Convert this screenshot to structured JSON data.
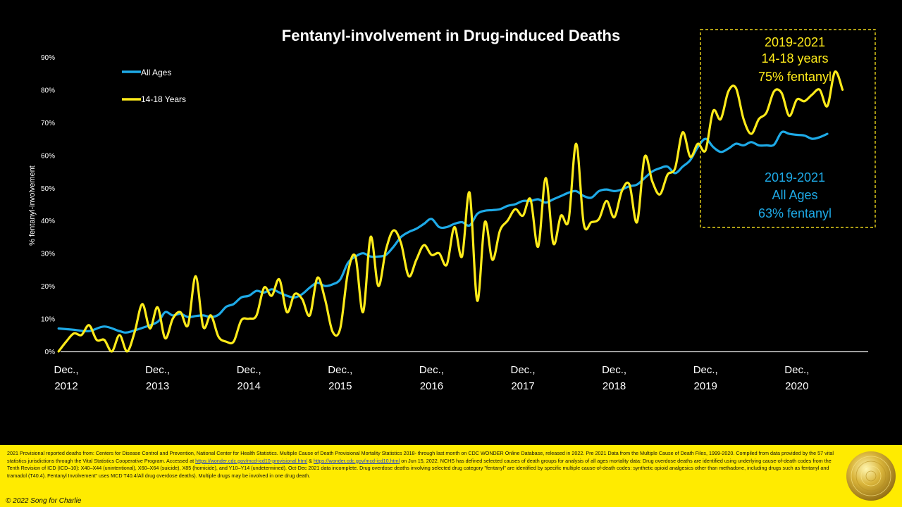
{
  "chart_data": {
    "type": "line",
    "title": "Fentanyl-involvement in Drug-induced Deaths",
    "ylabel": "% fentanyl-involvement",
    "ylim": [
      0,
      90
    ],
    "y_ticks": [
      "0%",
      "10%",
      "20%",
      "30%",
      "40%",
      "50%",
      "60%",
      "70%",
      "80%",
      "90%"
    ],
    "x_ticks": [
      {
        "l1": "Dec.,",
        "l2": "2012",
        "x": 0
      },
      {
        "l1": "Dec.,",
        "l2": "2013",
        "x": 12
      },
      {
        "l1": "Dec.,",
        "l2": "2014",
        "x": 24
      },
      {
        "l1": "Dec.,",
        "l2": "2015",
        "x": 36
      },
      {
        "l1": "Dec.,",
        "l2": "2016",
        "x": 48
      },
      {
        "l1": "Dec.,",
        "l2": "2017",
        "x": 60
      },
      {
        "l1": "Dec.,",
        "l2": "2018",
        "x": 72
      },
      {
        "l1": "Dec.,",
        "l2": "2019",
        "x": 84
      },
      {
        "l1": "Dec.,",
        "l2": "2020",
        "x": 96
      }
    ],
    "x_unit_note": "",
    "legend_position": "top-left",
    "series": [
      {
        "name": "All Ages",
        "color": "#1EAAE7",
        "points": [
          [
            -1,
            7
          ],
          [
            1,
            6.6
          ],
          [
            3,
            6.2
          ],
          [
            5,
            7.6
          ],
          [
            7,
            6.2
          ],
          [
            8,
            5.8
          ],
          [
            10,
            7.2
          ],
          [
            12,
            9
          ],
          [
            13,
            12
          ],
          [
            14,
            11
          ],
          [
            15,
            11.5
          ],
          [
            16,
            10.5
          ],
          [
            17,
            10.8
          ],
          [
            18,
            11
          ],
          [
            19,
            10.5
          ],
          [
            20,
            11.2
          ],
          [
            21,
            13.6
          ],
          [
            22,
            14.5
          ],
          [
            23,
            16.5
          ],
          [
            24,
            17
          ],
          [
            25,
            18.5
          ],
          [
            26,
            18
          ],
          [
            27,
            19
          ],
          [
            28,
            18
          ],
          [
            29,
            17
          ],
          [
            30,
            16.5
          ],
          [
            31,
            17.5
          ],
          [
            32,
            19.5
          ],
          [
            33,
            21
          ],
          [
            34,
            20
          ],
          [
            35,
            20.5
          ],
          [
            36,
            22
          ],
          [
            37,
            27
          ],
          [
            38,
            29
          ],
          [
            39,
            30
          ],
          [
            40,
            29
          ],
          [
            41,
            29
          ],
          [
            42,
            29.5
          ],
          [
            43,
            32
          ],
          [
            44,
            35
          ],
          [
            45,
            36.5
          ],
          [
            46,
            37.5
          ],
          [
            47,
            39
          ],
          [
            48,
            40.5
          ],
          [
            49,
            38
          ],
          [
            50,
            38
          ],
          [
            51,
            39
          ],
          [
            52,
            39.5
          ],
          [
            53,
            38.5
          ],
          [
            54,
            42
          ],
          [
            55,
            43
          ],
          [
            56,
            43.2
          ],
          [
            57,
            43.5
          ],
          [
            58,
            44.5
          ],
          [
            59,
            45
          ],
          [
            60,
            46
          ],
          [
            61,
            46
          ],
          [
            62,
            46.5
          ],
          [
            63,
            45.5
          ],
          [
            64,
            46.5
          ],
          [
            65,
            47.5
          ],
          [
            66,
            48.5
          ],
          [
            67,
            49
          ],
          [
            68,
            47.5
          ],
          [
            69,
            47
          ],
          [
            70,
            49
          ],
          [
            71,
            49.5
          ],
          [
            72,
            49
          ],
          [
            73,
            49.5
          ],
          [
            74,
            50.5
          ],
          [
            75,
            51
          ],
          [
            76,
            53
          ],
          [
            77,
            55
          ],
          [
            78,
            56
          ],
          [
            79,
            56.5
          ],
          [
            80,
            54.5
          ],
          [
            81,
            56.5
          ],
          [
            82,
            58.5
          ],
          [
            83,
            62.5
          ],
          [
            84,
            65
          ],
          [
            85,
            62.5
          ],
          [
            86,
            61
          ],
          [
            87,
            62
          ],
          [
            88,
            63.5
          ],
          [
            89,
            63
          ],
          [
            90,
            64
          ],
          [
            91,
            63
          ],
          [
            92,
            63
          ],
          [
            93,
            63.2
          ],
          [
            94,
            67
          ],
          [
            95,
            66.5
          ],
          [
            96,
            66.2
          ],
          [
            97,
            66
          ],
          [
            98,
            65
          ],
          [
            99,
            65.5
          ],
          [
            100,
            66.5
          ]
        ]
      },
      {
        "name": "14-18 Years",
        "color": "#FFEB1A",
        "points": [
          [
            -1,
            0
          ],
          [
            0,
            3
          ],
          [
            1,
            5.5
          ],
          [
            2,
            5
          ],
          [
            3,
            8
          ],
          [
            4,
            3.5
          ],
          [
            5,
            3.5
          ],
          [
            6,
            0
          ],
          [
            7,
            5
          ],
          [
            8,
            0
          ],
          [
            9,
            6
          ],
          [
            10,
            14.5
          ],
          [
            11,
            7
          ],
          [
            12,
            13.5
          ],
          [
            13,
            4
          ],
          [
            14,
            10
          ],
          [
            15,
            12
          ],
          [
            16,
            8
          ],
          [
            17,
            23
          ],
          [
            18,
            7.5
          ],
          [
            19,
            11
          ],
          [
            20,
            4.5
          ],
          [
            21,
            3
          ],
          [
            22,
            3
          ],
          [
            23,
            9.5
          ],
          [
            24,
            10
          ],
          [
            25,
            11
          ],
          [
            26,
            19.5
          ],
          [
            27,
            17
          ],
          [
            28,
            22
          ],
          [
            29,
            12
          ],
          [
            30,
            17.5
          ],
          [
            31,
            16
          ],
          [
            32,
            11
          ],
          [
            33,
            22.5
          ],
          [
            34,
            16
          ],
          [
            35,
            6
          ],
          [
            36,
            7
          ],
          [
            37,
            24
          ],
          [
            38,
            29
          ],
          [
            39,
            12
          ],
          [
            40,
            35
          ],
          [
            41,
            20
          ],
          [
            42,
            31
          ],
          [
            43,
            37
          ],
          [
            44,
            33
          ],
          [
            45,
            23
          ],
          [
            46,
            28
          ],
          [
            47,
            32.5
          ],
          [
            48,
            29.5
          ],
          [
            49,
            30
          ],
          [
            50,
            26.5
          ],
          [
            51,
            38
          ],
          [
            52,
            29
          ],
          [
            53,
            48.5
          ],
          [
            54,
            15.5
          ],
          [
            55,
            39.5
          ],
          [
            56,
            28
          ],
          [
            57,
            37
          ],
          [
            58,
            40
          ],
          [
            59,
            43.5
          ],
          [
            60,
            41.5
          ],
          [
            61,
            46.5
          ],
          [
            62,
            32
          ],
          [
            63,
            53
          ],
          [
            64,
            33
          ],
          [
            65,
            41.5
          ],
          [
            66,
            40
          ],
          [
            67,
            63.5
          ],
          [
            68,
            39
          ],
          [
            69,
            39.5
          ],
          [
            70,
            40.5
          ],
          [
            71,
            46
          ],
          [
            72,
            41
          ],
          [
            73,
            49
          ],
          [
            74,
            51
          ],
          [
            75,
            39.5
          ],
          [
            76,
            59.5
          ],
          [
            77,
            52
          ],
          [
            78,
            48
          ],
          [
            79,
            54
          ],
          [
            80,
            56
          ],
          [
            81,
            67
          ],
          [
            82,
            59.5
          ],
          [
            83,
            63.5
          ],
          [
            84,
            61.5
          ],
          [
            85,
            73.5
          ],
          [
            86,
            71
          ],
          [
            87,
            79.5
          ],
          [
            88,
            80.5
          ],
          [
            89,
            71
          ],
          [
            90,
            66.5
          ],
          [
            91,
            71
          ],
          [
            92,
            73
          ],
          [
            93,
            79.5
          ],
          [
            94,
            79
          ],
          [
            95,
            72
          ],
          [
            96,
            77
          ],
          [
            97,
            76.5
          ],
          [
            98,
            78.5
          ],
          [
            99,
            80
          ],
          [
            100,
            75
          ],
          [
            101,
            85.5
          ],
          [
            102,
            80
          ]
        ]
      }
    ],
    "annotations": [
      {
        "key": "teens",
        "lines": [
          "2019-2021",
          "14-18 years",
          "75% fentanyl"
        ],
        "color": "#FFEB1A"
      },
      {
        "key": "all",
        "lines": [
          "2019-2021",
          "All Ages",
          "63% fentanyl"
        ],
        "color": "#1EAAE7"
      }
    ],
    "grid": false
  },
  "footer": {
    "part1": "2021 Provisional reported deaths from: Centers for Disease Control and Prevention, National Center for Health Statistics. Multiple Cause of Death Provisional Mortality Statistics 2018- through last month on CDC WONDER Online Database, released in 2022. Pre 2021 Data from the Multiple Cause of Death Files, 1999-2020. Compiled from data provided by the 57 vital statistics jurisdictions through the Vital Statistics Cooperative Program. Accessed at",
    "link1": "https://wonder.cdc.gov/mcd-icd10-provisional.html",
    "amp": " & ",
    "link2": "https://wonder.cdc.gov/mcd-icd10.html",
    "part2": "on Jun 15, 2022. NCHS has defined selected causes of death groups for analysis of all ages mortality data: Drug overdose deaths are identified using underlying cause-of-death codes from the Tenth Revision of ICD (ICD–10): X40–X44 (unintentional), X60–X64 (suicide), X85 (homicide), and Y10–Y14 (undetermined). Oct-Dec 2021 data incomplete. Drug overdose deaths involving selected drug category \"fentanyl\" are identified by specific multiple cause-of-death codes: synthetic opioid analgesics other than methadone, including drugs such as fentanyl and tramadol (T40.4). Fentanyl Involvement\" uses MCD T40.4/All drug overdose deaths). Multiple drugs may be involved in one drug death.",
    "copyright": "© 2022 Song for Charlie"
  },
  "logo_icon": "gold-disc-logo"
}
